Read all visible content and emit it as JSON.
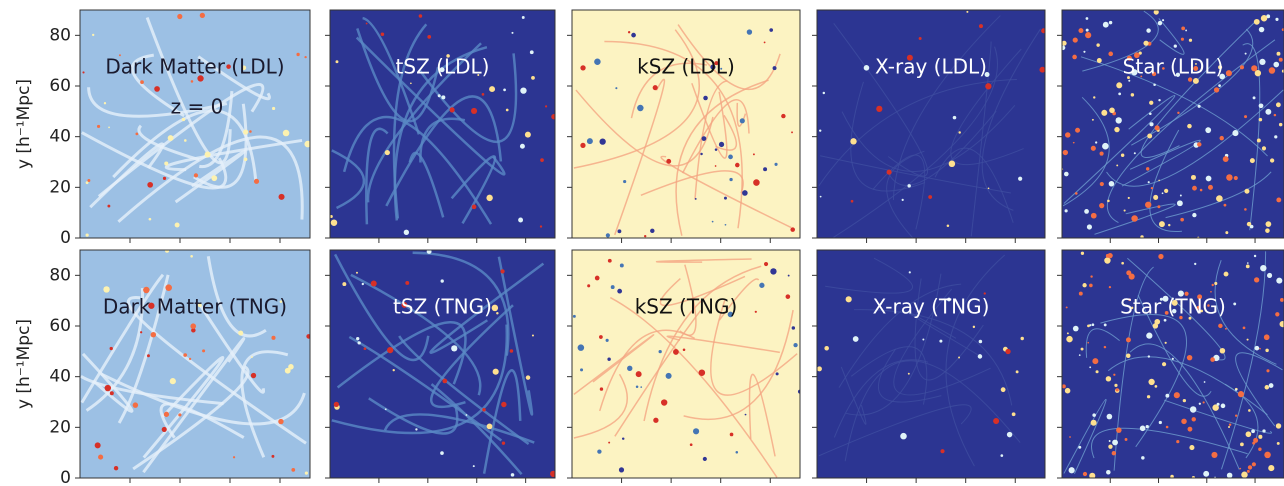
{
  "y_axis": {
    "label": "y [h⁻¹Mpc]",
    "ylim": [
      0,
      90
    ],
    "yticks": [
      0,
      20,
      40,
      60,
      80
    ]
  },
  "annotation": "z = 0",
  "rows": [
    {
      "panels": [
        "Dark Matter (LDL)",
        "tSZ (LDL)",
        "kSZ (LDL)",
        "X-ray (LDL)",
        "Star (LDL)"
      ]
    },
    {
      "panels": [
        "Dark Matter (TNG)",
        "tSZ (TNG)",
        "kSZ (TNG)",
        "X-ray (TNG)",
        "Star (TNG)"
      ]
    }
  ]
}
